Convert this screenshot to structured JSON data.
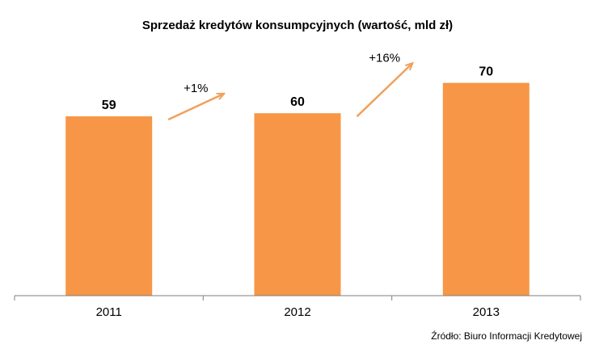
{
  "colors": {
    "bar": "#f79646",
    "arrow": "#f0a15c",
    "axis": "#7f7f7f"
  },
  "chart_data": {
    "type": "bar",
    "title": "Sprzedaż kredytów konsumpcyjnych (wartość, mld zł)",
    "xlabel": "",
    "ylabel": "",
    "categories": [
      "2011",
      "2012",
      "2013"
    ],
    "values": [
      59,
      60,
      70
    ],
    "ylim": [
      0,
      76
    ],
    "grid": false,
    "legend": "none",
    "annotations": [
      {
        "text": "+1%",
        "from": "2011",
        "to": "2012"
      },
      {
        "text": "+16%",
        "from": "2012",
        "to": "2013"
      }
    ],
    "source": "Źródło: Biuro Informacji Kredytowej"
  }
}
